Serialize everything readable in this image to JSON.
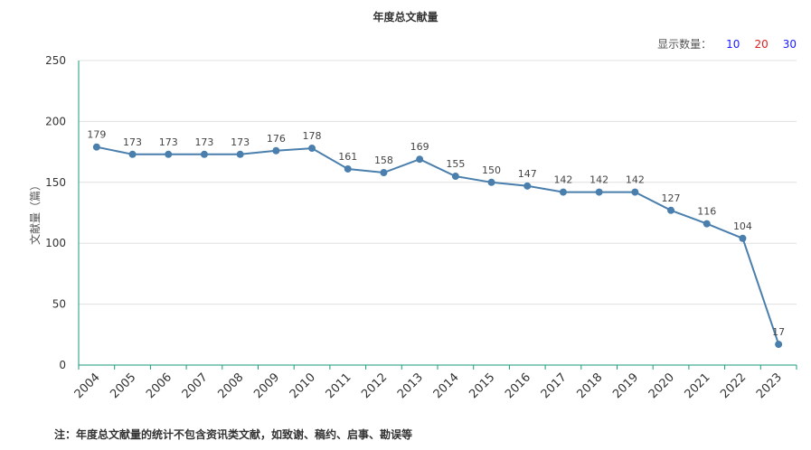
{
  "title": "年度总文献量",
  "display_count": {
    "label": "显示数量：",
    "options": [
      "10",
      "20",
      "30"
    ],
    "colors": [
      "#1a1aff",
      "#e02020",
      "#1a1aff"
    ]
  },
  "footnote": "注：年度总文献量的统计不包含资讯类文献，如致谢、稿约、启事、勘误等",
  "chart_data": {
    "type": "line",
    "title": "年度总文献量",
    "xlabel": "",
    "ylabel": "文献量（篇）",
    "categories": [
      "2004",
      "2005",
      "2006",
      "2007",
      "2008",
      "2009",
      "2010",
      "2011",
      "2012",
      "2013",
      "2014",
      "2015",
      "2016",
      "2017",
      "2018",
      "2019",
      "2020",
      "2021",
      "2022",
      "2023"
    ],
    "series": [
      {
        "values": [
          179,
          173,
          173,
          173,
          173,
          176,
          178,
          161,
          158,
          169,
          155,
          150,
          147,
          142,
          142,
          142,
          127,
          116,
          104,
          17
        ],
        "color": "#4a7fad"
      }
    ],
    "ylim": [
      0,
      250
    ],
    "yticks": [
      0,
      50,
      100,
      150,
      200,
      250
    ],
    "grid": true,
    "data_labels": true,
    "axis_color": "#1a9a7a"
  }
}
